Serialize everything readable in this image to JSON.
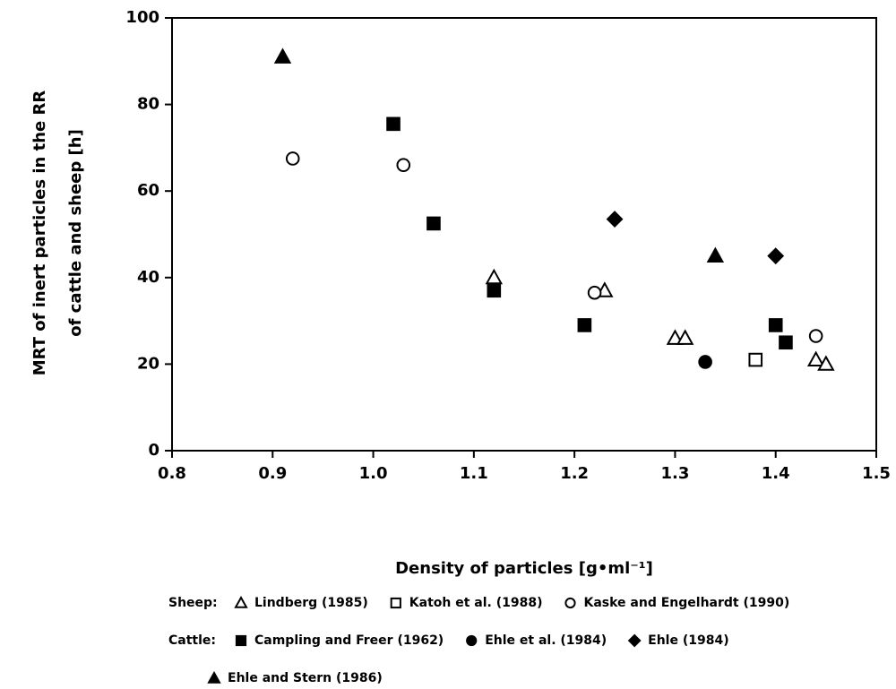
{
  "chart_data": {
    "type": "scatter",
    "ylabel": [
      "MRT of inert particles in the RR",
      "of cattle and sheep [h]"
    ],
    "xlabel": "Density of particles [g•ml⁻¹]",
    "xlim": [
      0.8,
      1.5
    ],
    "xticks": [
      0.8,
      0.9,
      {
        "value": 1,
        "label": "1.0"
      },
      1.1,
      1.2,
      1.3,
      1.4,
      1.5
    ],
    "ylim": [
      0,
      100
    ],
    "yticks": [
      0,
      20,
      40,
      60,
      80,
      100
    ],
    "legend_groups": [
      {
        "label": "Sheep:"
      },
      {
        "label": "Cattle:"
      }
    ],
    "series": [
      {
        "name": "Lindberg (1985)",
        "marker": "triangle",
        "filled": false,
        "color": "#000000",
        "x": [
          1.12,
          1.23,
          1.3,
          1.31,
          1.44,
          1.45
        ],
        "values": [
          40,
          37,
          26,
          26,
          21,
          20
        ]
      },
      {
        "name": "Katoh et al. (1988)",
        "marker": "square",
        "filled": false,
        "color": "#000000",
        "x": [
          1.38
        ],
        "values": [
          21
        ]
      },
      {
        "name": "Kaske and Engelhardt (1990)",
        "marker": "circle",
        "filled": false,
        "color": "#000000",
        "x": [
          0.92,
          1.03,
          1.22,
          1.44
        ],
        "values": [
          67.5,
          66,
          36.5,
          26.5
        ]
      },
      {
        "name": "Campling and Freer (1962)",
        "marker": "square",
        "filled": true,
        "color": "#000000",
        "x": [
          1.02,
          1.06,
          1.12,
          1.21,
          1.4,
          1.41
        ],
        "values": [
          75.5,
          52.5,
          37,
          29,
          29,
          25
        ]
      },
      {
        "name": "Ehle et al. (1984)",
        "marker": "circle",
        "filled": true,
        "color": "#000000",
        "x": [
          1.33
        ],
        "values": [
          20.5
        ]
      },
      {
        "name": "Ehle (1984)",
        "marker": "diamond",
        "filled": true,
        "color": "#000000",
        "x": [
          1.24,
          1.4
        ],
        "values": [
          53.5,
          45
        ]
      },
      {
        "name": "Ehle and Stern (1986)",
        "marker": "triangle",
        "filled": true,
        "color": "#000000",
        "x": [
          0.91,
          1.34
        ],
        "values": [
          91,
          45
        ]
      }
    ]
  }
}
